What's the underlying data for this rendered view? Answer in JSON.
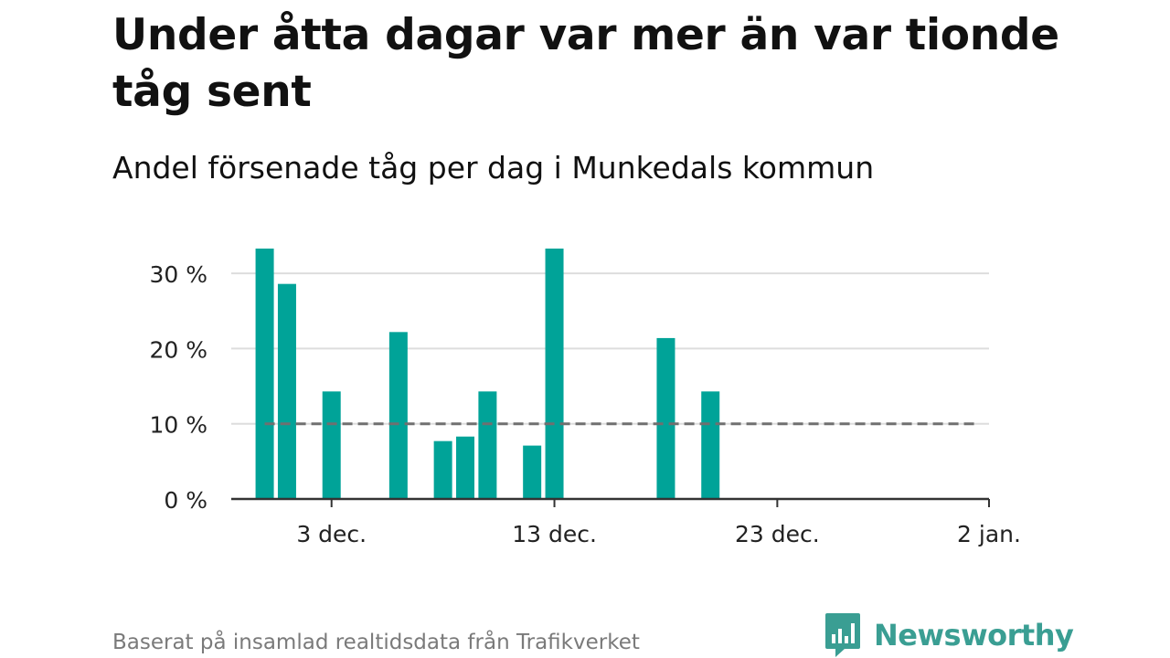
{
  "title": "Under åtta dagar var mer än var tionde tåg sent",
  "subtitle": "Andel försenade tåg per dag i Munkedals kommun",
  "source": "Baserat på insamlad realtidsdata från Trafikverket",
  "brand": {
    "name": "Newsworthy",
    "icon": "newsworthy-logo-icon"
  },
  "colors": {
    "bar": "#00a398",
    "reference": "#707070",
    "grid": "#dddddd",
    "axis": "#333333",
    "brand": "#3a9e93"
  },
  "chart_data": {
    "type": "bar",
    "ylim": [
      0,
      33.3
    ],
    "yticks": [
      0,
      10,
      20,
      30
    ],
    "ytick_labels": [
      "0 %",
      "10 %",
      "20 %",
      "30 %"
    ],
    "xticks": [
      "2023-12-03",
      "2023-12-13",
      "2023-12-23",
      "2024-01-02"
    ],
    "xtick_labels": [
      "3 dec.",
      "13 dec.",
      "23 dec.",
      "2 jan."
    ],
    "xlim": [
      "2023-11-29",
      "2024-01-02"
    ],
    "grid": true,
    "reference_line": {
      "value": 10,
      "from": "2023-11-30",
      "to": "2024-01-01"
    },
    "dates": [
      "2023-11-30",
      "2023-12-01",
      "2023-12-03",
      "2023-12-06",
      "2023-12-08",
      "2023-12-09",
      "2023-12-10",
      "2023-12-12",
      "2023-12-13",
      "2023-12-18",
      "2023-12-20"
    ],
    "values": [
      33.3,
      28.6,
      14.3,
      22.2,
      7.7,
      8.3,
      14.3,
      7.1,
      33.3,
      21.4,
      14.3
    ]
  }
}
